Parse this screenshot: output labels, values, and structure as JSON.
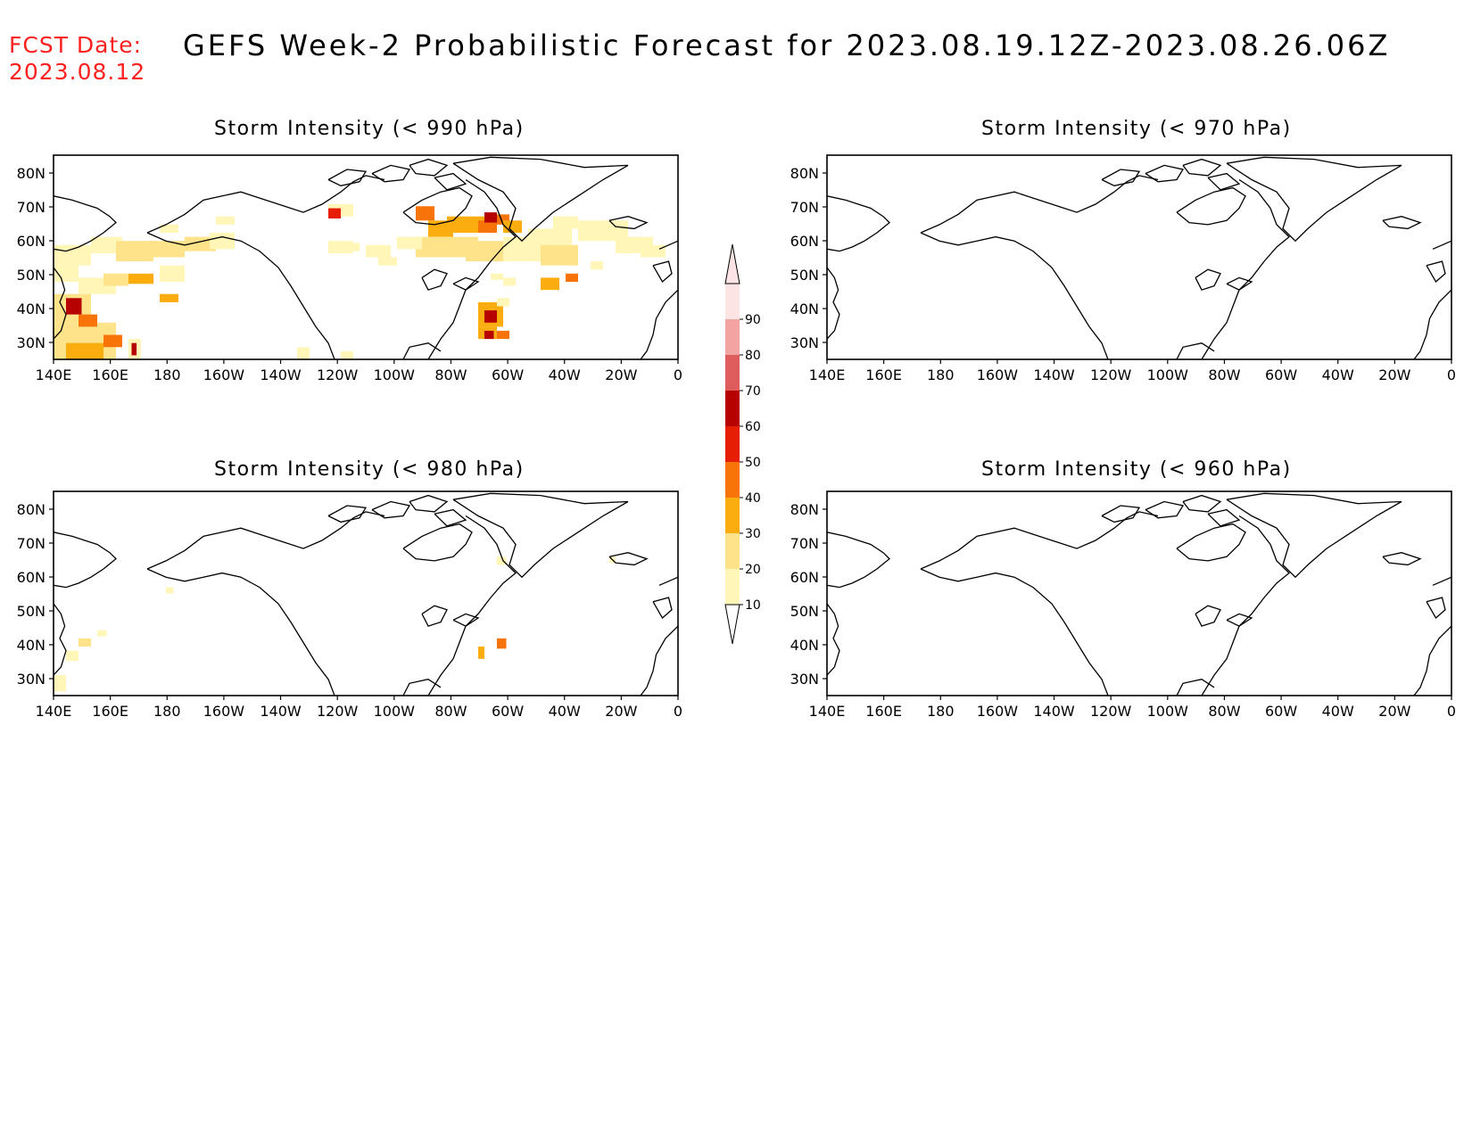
{
  "header": {
    "fcst_label": "FCST Date:",
    "fcst_date": "2023.08.12",
    "title": "GEFS Week-2 Probabilistic Forecast for 2023.08.19.12Z-2023.08.26.06Z"
  },
  "colorbar": {
    "levels": [
      "10",
      "20",
      "30",
      "40",
      "50",
      "60",
      "70",
      "80",
      "90"
    ],
    "colors": [
      "#fff6b8",
      "#fee38a",
      "#fbad10",
      "#f87308",
      "#e61e06",
      "#b70202",
      "#de5c5c",
      "#f4a3a3",
      "#fde4e4"
    ]
  },
  "axes": {
    "lon_labels": [
      "140E",
      "160E",
      "180",
      "160W",
      "140W",
      "120W",
      "100W",
      "80W",
      "60W",
      "40W",
      "20W",
      "0"
    ],
    "lat_labels": [
      "80N",
      "70N",
      "60N",
      "50N",
      "40N",
      "30N"
    ]
  },
  "panels": [
    {
      "id": "p990",
      "title": "Storm Intensity (< 990 hPa)"
    },
    {
      "id": "p970",
      "title": "Storm Intensity (< 970 hPa)"
    },
    {
      "id": "p980",
      "title": "Storm Intensity (< 980 hPa)"
    },
    {
      "id": "p960",
      "title": "Storm Intensity (< 960 hPa)"
    }
  ]
}
